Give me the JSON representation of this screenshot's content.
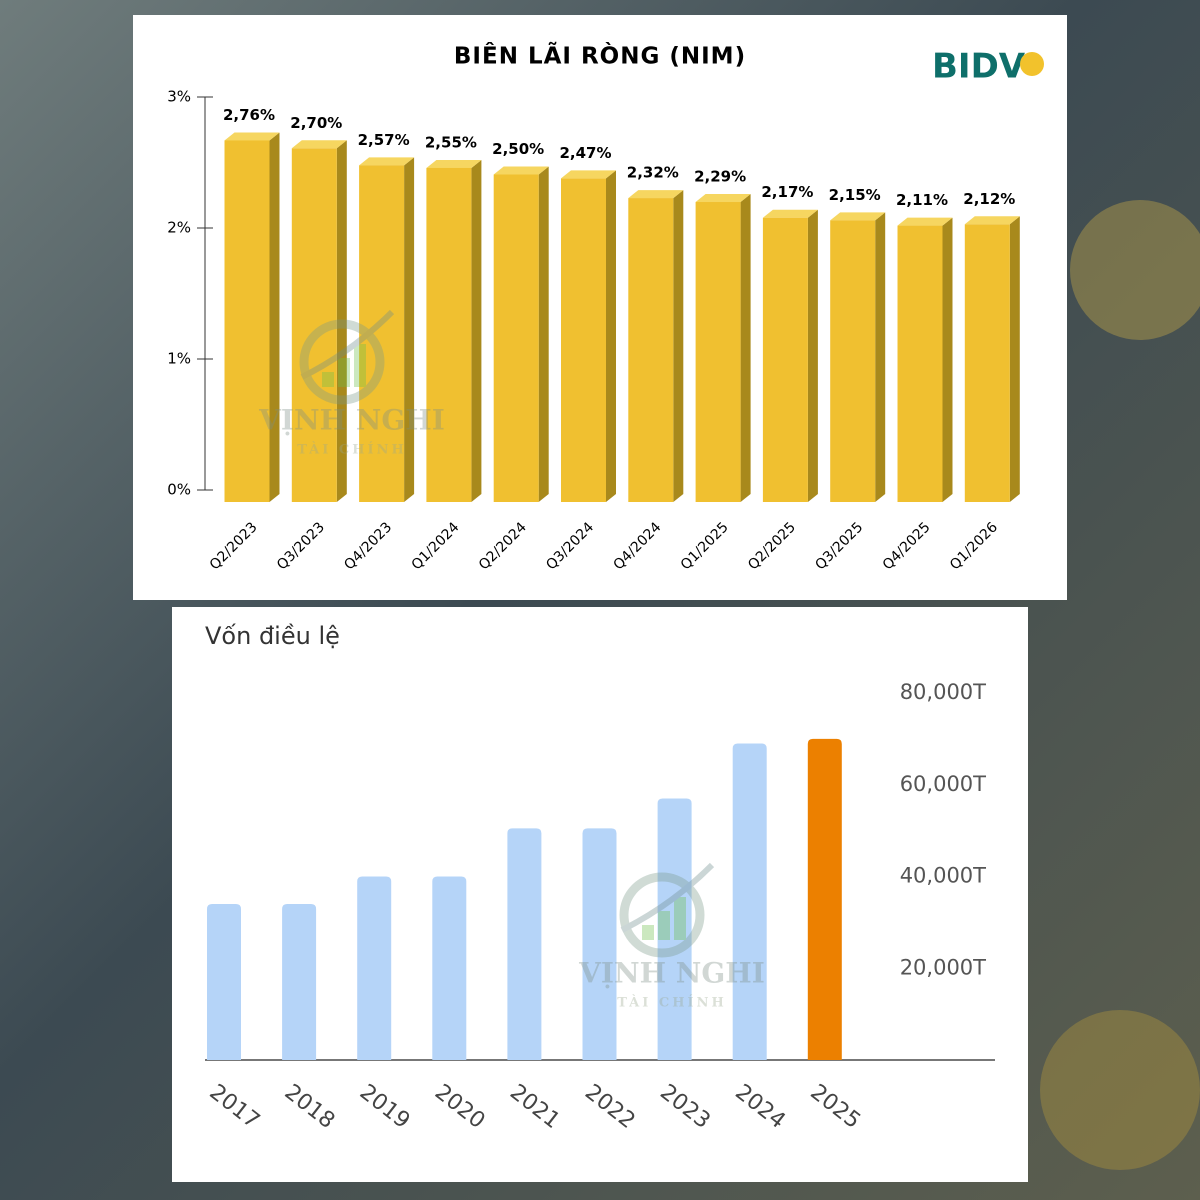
{
  "watermark": {
    "brand": "VỊNH NGHI",
    "tagline": "TÀI CHÍNH"
  },
  "chart_data": [
    {
      "type": "bar",
      "three_d": true,
      "title": "BIÊN LÃI RÒNG (NIM)",
      "logo": "BIDV",
      "categories": [
        "Q2/2023",
        "Q3/2023",
        "Q4/2023",
        "Q1/2024",
        "Q2/2024",
        "Q3/2024",
        "Q4/2024",
        "Q1/2025",
        "Q2/2025",
        "Q3/2025",
        "Q4/2025",
        "Q1/2026"
      ],
      "values": [
        2.76,
        2.7,
        2.57,
        2.55,
        2.5,
        2.47,
        2.32,
        2.29,
        2.17,
        2.15,
        2.11,
        2.12
      ],
      "value_labels": [
        "2,76%",
        "2,70%",
        "2,57%",
        "2,55%",
        "2,50%",
        "2,47%",
        "2,32%",
        "2,29%",
        "2,17%",
        "2,15%",
        "2,11%",
        "2,12%"
      ],
      "color": "#f0c030",
      "y_axis_position": "left",
      "ylim": [
        0,
        3
      ],
      "yticks": [
        {
          "value": 0,
          "label": "0%"
        },
        {
          "value": 1,
          "label": "1%"
        },
        {
          "value": 2,
          "label": "2%"
        },
        {
          "value": 3,
          "label": "3%"
        }
      ]
    },
    {
      "type": "bar",
      "three_d": false,
      "title": "Vốn điều lệ",
      "categories": [
        "2017",
        "2018",
        "2019",
        "2020",
        "2021",
        "2022",
        "2023",
        "2024",
        "2025"
      ],
      "values": [
        34000,
        34000,
        40000,
        40000,
        50500,
        50500,
        57000,
        69000,
        70000
      ],
      "colors": [
        "#b5d4f8",
        "#b5d4f8",
        "#b5d4f8",
        "#b5d4f8",
        "#b5d4f8",
        "#b5d4f8",
        "#b5d4f8",
        "#b5d4f8",
        "#ec8000"
      ],
      "y_axis_position": "right",
      "ylim": [
        0,
        80000
      ],
      "yticks": [
        {
          "value": 20000,
          "label": "20,000T"
        },
        {
          "value": 40000,
          "label": "40,000T"
        },
        {
          "value": 60000,
          "label": "60,000T"
        },
        {
          "value": 80000,
          "label": "80,000T"
        }
      ]
    }
  ]
}
